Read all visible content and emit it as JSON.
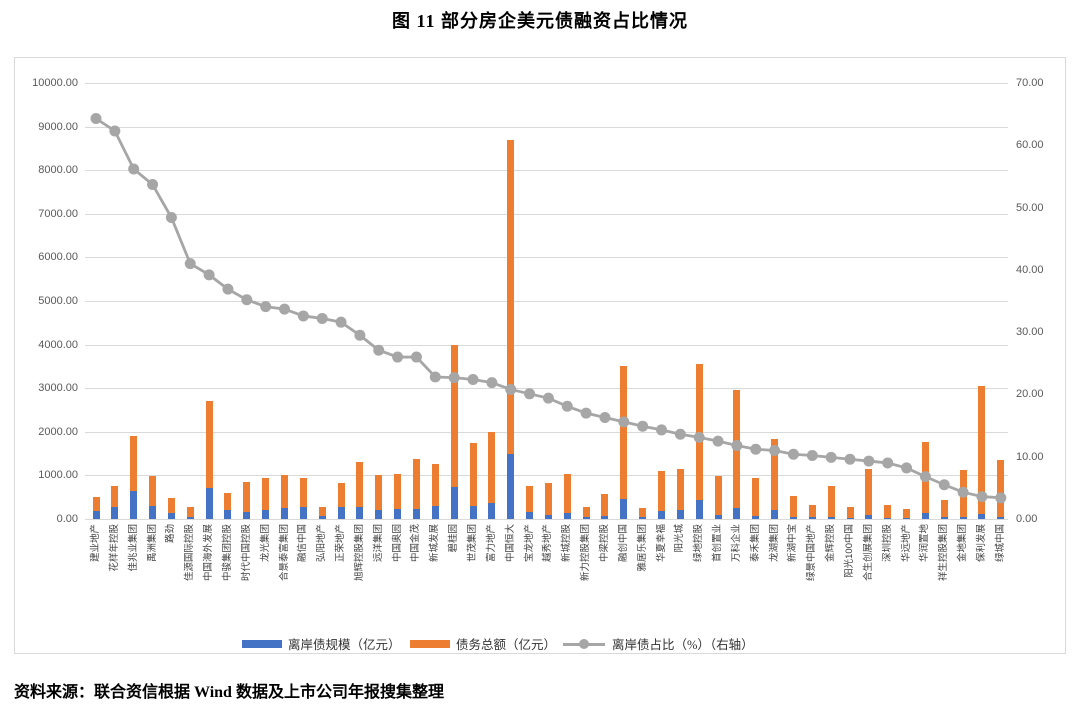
{
  "title": "图 11  部分房企美元债融资占比情况",
  "source_note": "资料来源：联合资信根据 Wind 数据及上市公司年报搜集整理",
  "legend": {
    "offshore_scale": "离岸债规模（亿元）",
    "total_debt": "债务总额（亿元）",
    "offshore_ratio": "离岸债占比（%）（右轴）"
  },
  "colors": {
    "blue": "#4472C4",
    "orange": "#ED7D31",
    "gray_line": "#A6A6A6",
    "grid": "#D9D9D9",
    "axis_text": "#595959"
  },
  "chart_data": {
    "type": "bar",
    "subtype": "bars-with-right-axis-line",
    "title": "图 11  部分房企美元债融资占比情况",
    "categories": [
      "建业地产",
      "花样年控股",
      "佳兆业集团",
      "禹洲集团",
      "路劲",
      "佳源国际控股",
      "中国海外发展",
      "中骏集团控股",
      "时代中国控股",
      "龙光集团",
      "合景泰富集团",
      "融信中国",
      "弘阳地产",
      "正荣地产",
      "旭辉控股集团",
      "远洋集团",
      "中国奥园",
      "中国金茂",
      "新城发展",
      "碧桂园",
      "世茂集团",
      "富力地产",
      "中国恒大",
      "宝龙地产",
      "越秀地产",
      "新城控股",
      "新力控股集团",
      "中梁控股",
      "融创中国",
      "雅居乐集团",
      "华夏幸福",
      "阳光城",
      "绿地控股",
      "首创置业",
      "万科企业",
      "泰禾集团",
      "龙湖集团",
      "新湖中宝",
      "绿景中国地产",
      "金辉控股",
      "阳光100中国",
      "合生创展集团",
      "深圳控股",
      "华远地产",
      "华润置地",
      "祥生控股集团",
      "金地集团",
      "保利发展",
      "绿城中国"
    ],
    "series": [
      {
        "name": "离岸债规模（亿元）",
        "type": "bar",
        "color": "#4472C4",
        "values": [
          180,
          270,
          640,
          300,
          140,
          55,
          700,
          210,
          170,
          200,
          250,
          280,
          60,
          270,
          270,
          210,
          240,
          240,
          300,
          730,
          300,
          360,
          1500,
          160,
          90,
          130,
          55,
          80,
          460,
          40,
          190,
          200,
          430,
          100,
          250,
          80,
          210,
          50,
          40,
          55,
          30,
          90,
          30,
          25,
          140,
          35,
          55,
          120,
          50
        ]
      },
      {
        "name": "债务总额（亿元）",
        "type": "bar",
        "color": "#ED7D31",
        "values": [
          500,
          750,
          1900,
          990,
          480,
          270,
          2700,
          600,
          850,
          940,
          1000,
          950,
          280,
          830,
          1300,
          1000,
          1040,
          1370,
          1260,
          4000,
          1750,
          1990,
          8700,
          760,
          830,
          1030,
          280,
          570,
          3500,
          260,
          1100,
          1150,
          3550,
          990,
          2960,
          950,
          1840,
          530,
          330,
          760,
          280,
          1140,
          320,
          230,
          1770,
          440,
          1120,
          3050,
          1350
        ]
      },
      {
        "name": "离岸债占比（%）（右轴）",
        "type": "line",
        "axis": "right",
        "color": "#A6A6A6",
        "values": [
          64.3,
          62.3,
          56.2,
          53.7,
          48.4,
          41.0,
          39.2,
          36.9,
          35.2,
          34.1,
          33.7,
          32.6,
          32.2,
          31.6,
          29.5,
          27.1,
          26.0,
          26.0,
          22.8,
          22.7,
          22.4,
          21.9,
          20.8,
          20.1,
          19.4,
          18.1,
          17.0,
          16.3,
          15.6,
          14.9,
          14.3,
          13.6,
          13.1,
          12.5,
          11.8,
          11.2,
          11.0,
          10.4,
          10.2,
          9.9,
          9.6,
          9.3,
          9.0,
          8.2,
          6.8,
          5.5,
          4.3,
          3.6,
          3.4
        ]
      }
    ],
    "left_axis": {
      "min": 0,
      "max": 10000,
      "step": 1000,
      "tick_format": "0.00"
    },
    "right_axis": {
      "min": 0,
      "max": 70,
      "step": 10,
      "tick_format": "0.00"
    },
    "grid": true,
    "legend_position": "bottom"
  }
}
